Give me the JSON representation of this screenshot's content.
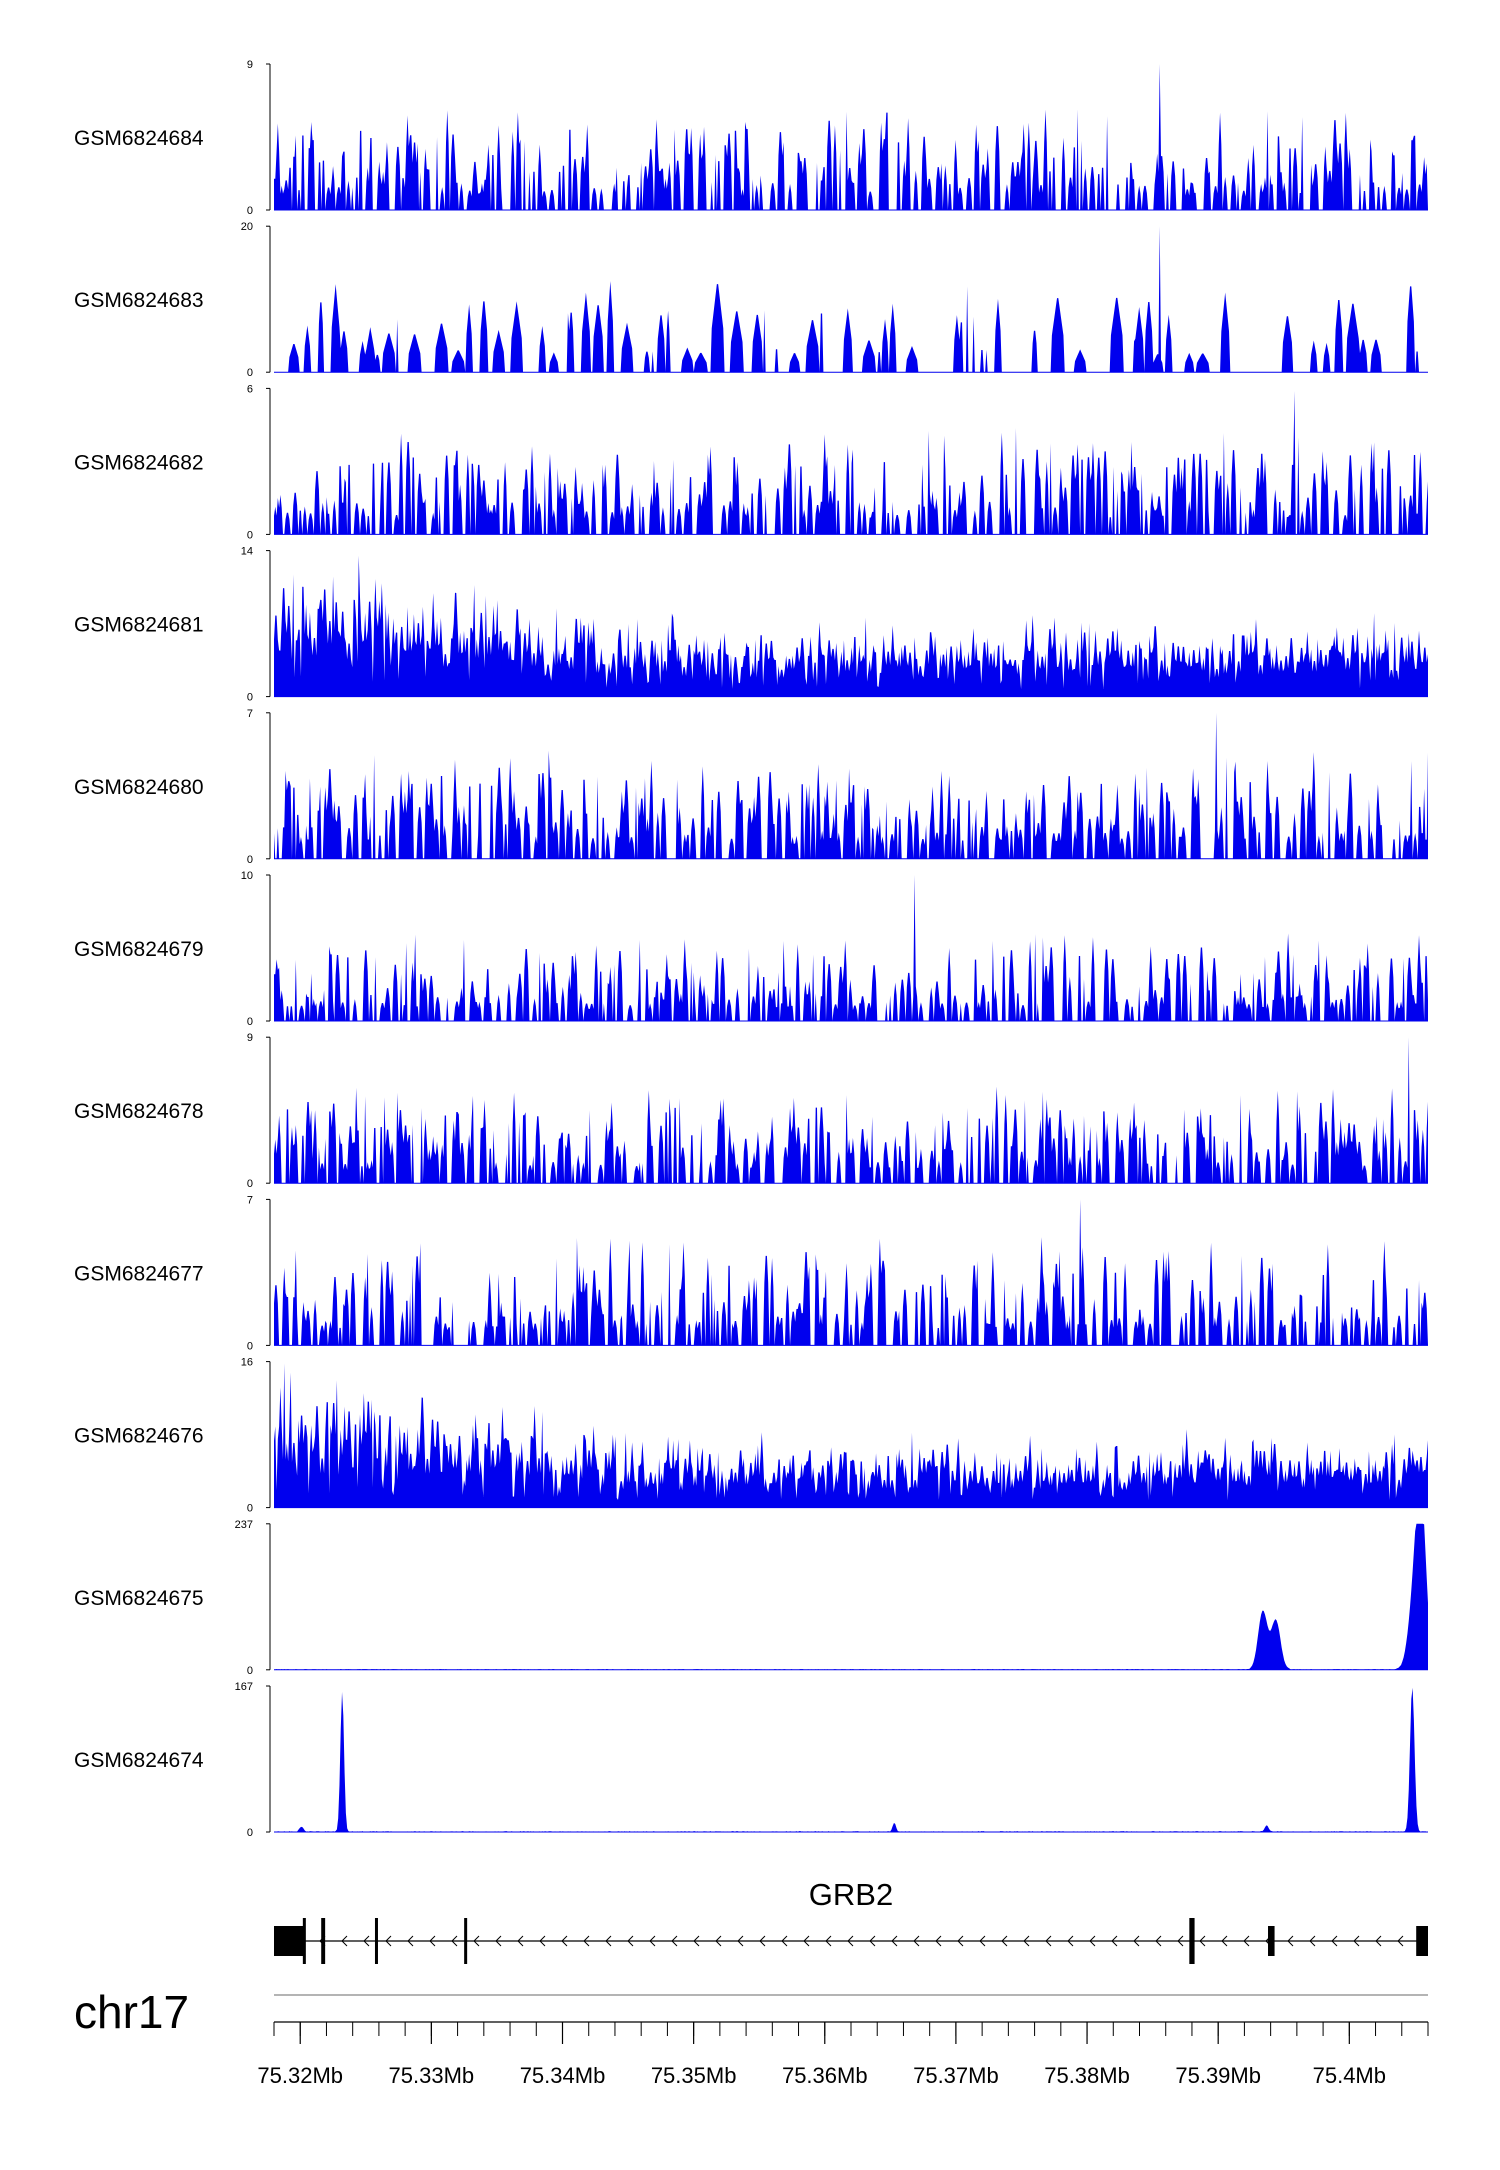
{
  "chart_data": {
    "type": "area",
    "title": "",
    "xlabel": "",
    "ylabel": "",
    "signal_color": "#0000ee",
    "xlim": [
      75.318,
      75.406
    ],
    "x_unit": "Mb",
    "tracks": [
      {
        "name": "GSM6824684",
        "ymin": "0",
        "ymax": "9",
        "ymax_value": 9,
        "profile": "uniform",
        "typical": 3.2,
        "peak": 9,
        "peak_at": 75.3855,
        "seed": 11
      },
      {
        "name": "GSM6824683",
        "ymin": "0",
        "ymax": "20",
        "ymax_value": 20,
        "profile": "sparse",
        "typical": 6.5,
        "peak": 20,
        "peak_at": 75.3855,
        "seed": 23
      },
      {
        "name": "GSM6824682",
        "ymin": "0",
        "ymax": "6",
        "ymax_value": 6,
        "profile": "uniform",
        "typical": 2.2,
        "peak": 5.9,
        "peak_at": 75.3958,
        "seed": 37
      },
      {
        "name": "GSM6824681",
        "ymin": "0",
        "ymax": "14",
        "ymax_value": 14,
        "profile": "dense",
        "typical": 3.0,
        "peak": 13.5,
        "peak_at": 75.3245,
        "seed": 41
      },
      {
        "name": "GSM6824680",
        "ymin": "0",
        "ymax": "7",
        "ymax_value": 7,
        "profile": "uniform",
        "typical": 2.6,
        "peak": 7,
        "peak_at": 75.3898,
        "seed": 53
      },
      {
        "name": "GSM6824679",
        "ymin": "0",
        "ymax": "10",
        "ymax_value": 10,
        "profile": "uniform",
        "typical": 3.0,
        "peak": 10,
        "peak_at": 75.3668,
        "seed": 67
      },
      {
        "name": "GSM6824678",
        "ymin": "0",
        "ymax": "9",
        "ymax_value": 9,
        "profile": "uniform",
        "typical": 3.0,
        "peak": 9,
        "peak_at": 75.4045,
        "seed": 71
      },
      {
        "name": "GSM6824677",
        "ymin": "0",
        "ymax": "7",
        "ymax_value": 7,
        "profile": "uniform",
        "typical": 2.6,
        "peak": 7,
        "peak_at": 75.3795,
        "seed": 83
      },
      {
        "name": "GSM6824676",
        "ymin": "0",
        "ymax": "16",
        "ymax_value": 16,
        "profile": "dense",
        "typical": 3.2,
        "peak": 15.8,
        "peak_at": 75.3188,
        "seed": 97
      },
      {
        "name": "GSM6824675",
        "ymin": "0",
        "ymax": "237",
        "ymax_value": 237,
        "profile": "peaks",
        "typical": 1.2,
        "seed": 101,
        "peaks": [
          {
            "at": 75.3934,
            "height": 95,
            "width": 0.00035
          },
          {
            "at": 75.3944,
            "height": 80,
            "width": 0.00035
          },
          {
            "at": 75.405,
            "height": 120,
            "width": 0.00045
          },
          {
            "at": 75.4055,
            "height": 232,
            "width": 0.00038
          }
        ]
      },
      {
        "name": "GSM6824674",
        "ymin": "0",
        "ymax": "167",
        "ymax_value": 167,
        "profile": "peaks",
        "typical": 1.0,
        "seed": 113,
        "peaks": [
          {
            "at": 75.3201,
            "height": 6,
            "width": 0.00015
          },
          {
            "at": 75.3232,
            "height": 160,
            "width": 0.00014
          },
          {
            "at": 75.3653,
            "height": 10,
            "width": 0.00012
          },
          {
            "at": 75.3937,
            "height": 7,
            "width": 0.00015
          },
          {
            "at": 75.4048,
            "height": 166,
            "width": 0.00017
          }
        ]
      }
    ],
    "gene": {
      "name": "GRB2",
      "strand": "-",
      "start": 75.318,
      "end": 75.406,
      "exons": [
        {
          "start": 75.318,
          "end": 75.3203,
          "tall": true
        },
        {
          "start": 75.3202,
          "end": 75.3204,
          "tall": true
        },
        {
          "start": 75.3216,
          "end": 75.3219,
          "tall": true
        },
        {
          "start": 75.3257,
          "end": 75.3259,
          "tall": true
        },
        {
          "start": 75.3325,
          "end": 75.3327,
          "tall": true
        },
        {
          "start": 75.3878,
          "end": 75.3882,
          "tall": true
        },
        {
          "start": 75.3938,
          "end": 75.3943,
          "tall": true
        },
        {
          "start": 75.4051,
          "end": 75.406,
          "tall": true
        }
      ]
    },
    "chromosome": "chr17",
    "x_ticks": [
      {
        "value": 75.32,
        "label": "75.32Mb"
      },
      {
        "value": 75.33,
        "label": "75.33Mb"
      },
      {
        "value": 75.34,
        "label": "75.34Mb"
      },
      {
        "value": 75.35,
        "label": "75.35Mb"
      },
      {
        "value": 75.36,
        "label": "75.36Mb"
      },
      {
        "value": 75.37,
        "label": "75.37Mb"
      },
      {
        "value": 75.38,
        "label": "75.38Mb"
      },
      {
        "value": 75.39,
        "label": "75.39Mb"
      },
      {
        "value": 75.4,
        "label": "75.4Mb"
      }
    ],
    "minor_tick_step": 0.002
  }
}
